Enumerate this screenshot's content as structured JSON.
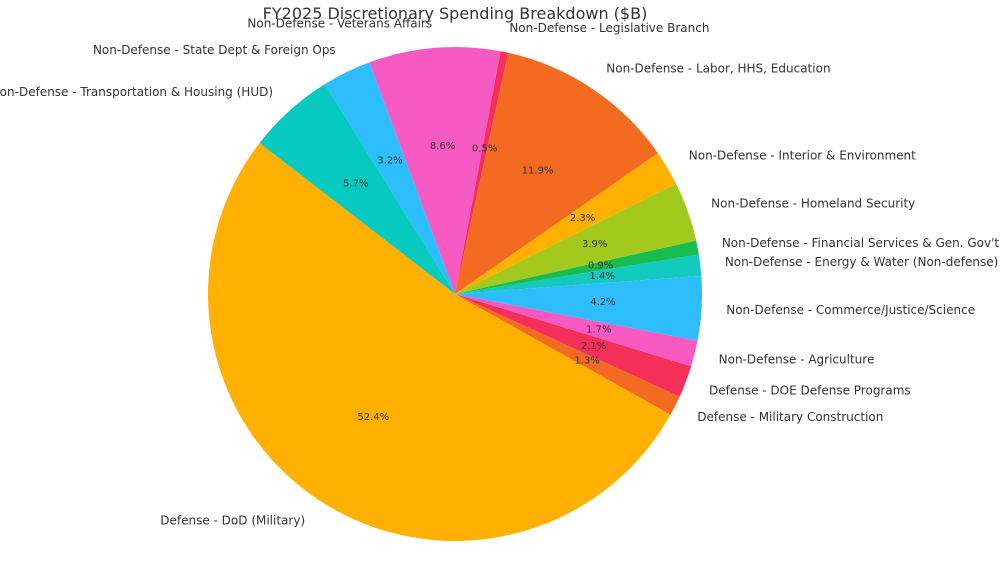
{
  "chart_data": {
    "type": "pie",
    "title": "FY2025 Discretionary Spending Breakdown ($B)",
    "slices": [
      {
        "label": "Defense - DoD (Military)",
        "percent": 52.4,
        "color": "#FFB000"
      },
      {
        "label": "Defense - Military Construction",
        "percent": 1.3,
        "color": "#F26B21"
      },
      {
        "label": "Defense - DOE Defense Programs",
        "percent": 2.1,
        "color": "#F4305A"
      },
      {
        "label": "Non-Defense - Agriculture",
        "percent": 1.7,
        "color": "#F75AC2"
      },
      {
        "label": "Non-Defense - Commerce/Justice/Science",
        "percent": 4.2,
        "color": "#2EBDFB"
      },
      {
        "label": "Non-Defense - Energy & Water (Non-defense)",
        "percent": 1.4,
        "color": "#13CABF"
      },
      {
        "label": "Non-Defense - Financial Services & Gen. Gov't",
        "percent": 0.9,
        "color": "#18BC4F"
      },
      {
        "label": "Non-Defense - Homeland Security",
        "percent": 3.9,
        "color": "#A2CA1E"
      },
      {
        "label": "Non-Defense - Interior & Environment",
        "percent": 2.3,
        "color": "#FFB000"
      },
      {
        "label": "Non-Defense - Labor, HHS, Education",
        "percent": 11.9,
        "color": "#F26B21"
      },
      {
        "label": "Non-Defense - Legislative Branch",
        "percent": 0.5,
        "color": "#F4305A"
      },
      {
        "label": "Non-Defense - Veterans Affairs",
        "percent": 8.6,
        "color": "#F75AC2"
      },
      {
        "label": "Non-Defense - State Dept & Foreign Ops",
        "percent": 3.2,
        "color": "#2EBDFB"
      },
      {
        "label": "Non-Defense - Transportation & Housing (HUD)",
        "percent": 5.7,
        "color": "#06CABF"
      }
    ],
    "start_angle_deg": 142.3,
    "direction": "counterclockwise",
    "legend": "none"
  }
}
